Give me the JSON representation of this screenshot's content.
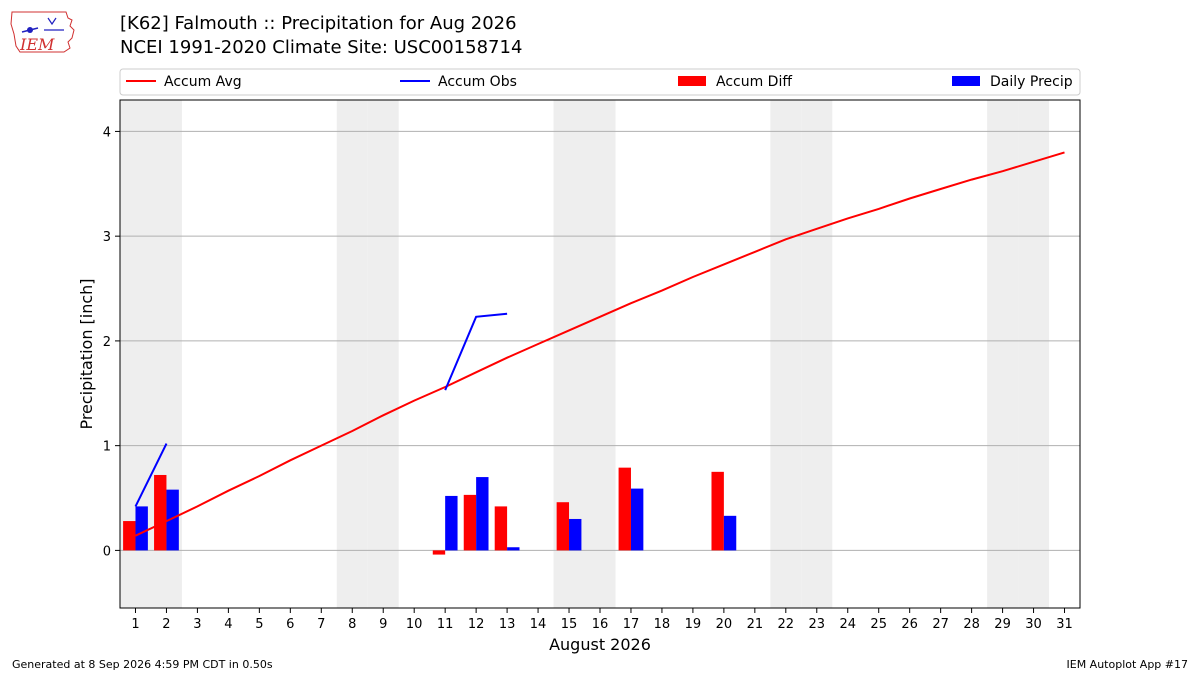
{
  "header": {
    "logo_text": "IEM",
    "title_line1": "[K62] Falmouth :: Precipitation for Aug 2026",
    "title_line2": "NCEI 1991-2020 Climate Site: USC00158714"
  },
  "footer": {
    "left": "Generated at 8 Sep 2026 4:59 PM CDT in 0.50s",
    "right": "IEM Autoplot App #17"
  },
  "colors": {
    "avg": "#ff0000",
    "obs": "#0000ff",
    "diff": "#ff0000",
    "daily": "#0000ff",
    "weekend": "#eeeeee",
    "grid": "#b0b0b0"
  },
  "chart_data": {
    "type": "bar",
    "xlabel": "August 2026",
    "ylabel": "Precipitation [inch]",
    "xlim": [
      0.5,
      31.5
    ],
    "ylim": [
      -0.55,
      4.3
    ],
    "yticks": [
      0,
      1,
      2,
      3,
      4
    ],
    "grid": "horizontal",
    "legend_placement": "top",
    "legend": [
      "Accum Avg",
      "Accum Obs",
      "Accum Diff",
      "Daily Precip"
    ],
    "weekend_days": [
      1,
      2,
      8,
      9,
      15,
      16,
      22,
      23,
      29,
      30
    ],
    "days": [
      1,
      2,
      3,
      4,
      5,
      6,
      7,
      8,
      9,
      10,
      11,
      12,
      13,
      14,
      15,
      16,
      17,
      18,
      19,
      20,
      21,
      22,
      23,
      24,
      25,
      26,
      27,
      28,
      29,
      30,
      31
    ],
    "series": [
      {
        "name": "Accum Avg",
        "kind": "line",
        "x": [
          1,
          2,
          3,
          4,
          5,
          6,
          7,
          8,
          9,
          10,
          11,
          12,
          13,
          14,
          15,
          16,
          17,
          18,
          19,
          20,
          21,
          22,
          23,
          24,
          25,
          26,
          27,
          28,
          29,
          30,
          31
        ],
        "values": [
          0.14,
          0.28,
          0.42,
          0.57,
          0.71,
          0.86,
          1.0,
          1.14,
          1.29,
          1.43,
          1.56,
          1.7,
          1.84,
          1.97,
          2.1,
          2.23,
          2.36,
          2.48,
          2.61,
          2.73,
          2.85,
          2.97,
          3.07,
          3.17,
          3.26,
          3.36,
          3.45,
          3.54,
          3.62,
          3.71,
          3.8
        ]
      },
      {
        "name": "Accum Obs",
        "kind": "line",
        "x": [
          1,
          2,
          null,
          11,
          12,
          13
        ],
        "values": [
          0.42,
          1.02,
          null,
          1.53,
          2.23,
          2.26
        ]
      },
      {
        "name": "Accum Diff",
        "kind": "bar",
        "x": [
          1,
          2,
          11,
          12,
          13,
          15,
          17,
          20
        ],
        "values": [
          0.28,
          0.72,
          -0.04,
          0.53,
          0.42,
          0.46,
          0.79,
          0.75
        ]
      },
      {
        "name": "Daily Precip",
        "kind": "bar",
        "x": [
          1,
          2,
          11,
          12,
          13,
          15,
          17,
          20
        ],
        "values": [
          0.42,
          0.58,
          0.52,
          0.7,
          0.03,
          0.3,
          0.59,
          0.33
        ]
      }
    ]
  }
}
